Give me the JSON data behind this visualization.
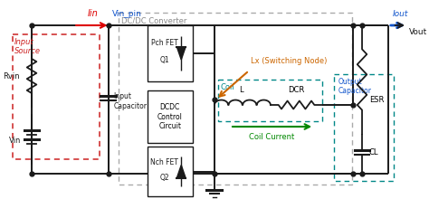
{
  "colors": {
    "black": "#1a1a1a",
    "red": "#dd0000",
    "red_dashed": "#cc2222",
    "blue": "#1155cc",
    "teal": "#008888",
    "teal_dark": "#007777",
    "orange": "#cc6600",
    "green": "#008800",
    "gray": "#888888",
    "gray_light": "#aaaaaa"
  },
  "labels": {
    "Iin": "Iin",
    "Vin_pin": "Vin_pin",
    "Input_Source": "Input\nSource",
    "Rvin": "Rvin",
    "Vin": "Vin",
    "Input_Capacitor": "Input\nCapacitor",
    "DCDC_Converter": "DC/DC Converter",
    "Pch_FET": "Pch FET",
    "Q1": "Q1",
    "DCDC_Control": "DCDC\nControl\nCircuit",
    "Nch_FET": "Nch FET",
    "Q2": "Q2",
    "Lx_node": "Lx (Switching Node)",
    "Coil": "Coil",
    "L": "L",
    "DCR": "DCR",
    "Coil_Current": "Coil Current",
    "Iout": "Iout",
    "Vout": "Vout",
    "ESR": "ESR",
    "CL": "CL",
    "Output_Capacitor": "Output\nCapacitor"
  }
}
